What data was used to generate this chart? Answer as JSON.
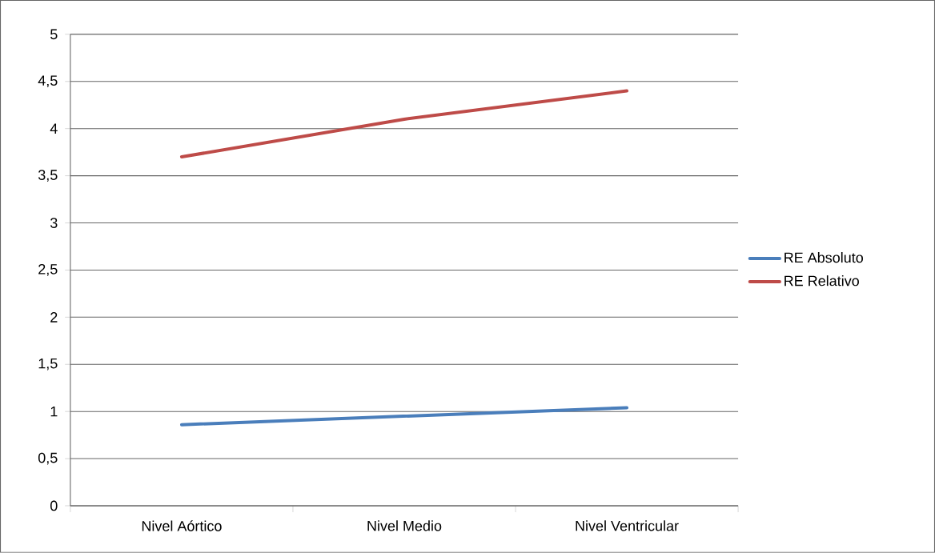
{
  "chart_data": {
    "type": "line",
    "categories": [
      "Nivel Aórtico",
      "Nivel Medio",
      "Nivel Ventricular"
    ],
    "series": [
      {
        "name": "RE Absoluto",
        "color": "#4a7ebb",
        "values": [
          0.86,
          0.95,
          1.04
        ]
      },
      {
        "name": "RE Relativo",
        "color": "#be4b48",
        "values": [
          3.7,
          4.1,
          4.4
        ]
      }
    ],
    "ylim": [
      0,
      5
    ],
    "yticks": [
      0,
      {
        "value": 0.5,
        "label": "0,5"
      },
      1,
      {
        "value": 1.5,
        "label": "1,5"
      },
      2,
      {
        "value": 2.5,
        "label": "2,5"
      },
      3,
      {
        "value": 3.5,
        "label": "3,5"
      },
      4,
      {
        "value": 4.5,
        "label": "4,5"
      },
      5
    ],
    "grid": "y",
    "legend": "right",
    "marker": "none",
    "line_style": "solid"
  }
}
